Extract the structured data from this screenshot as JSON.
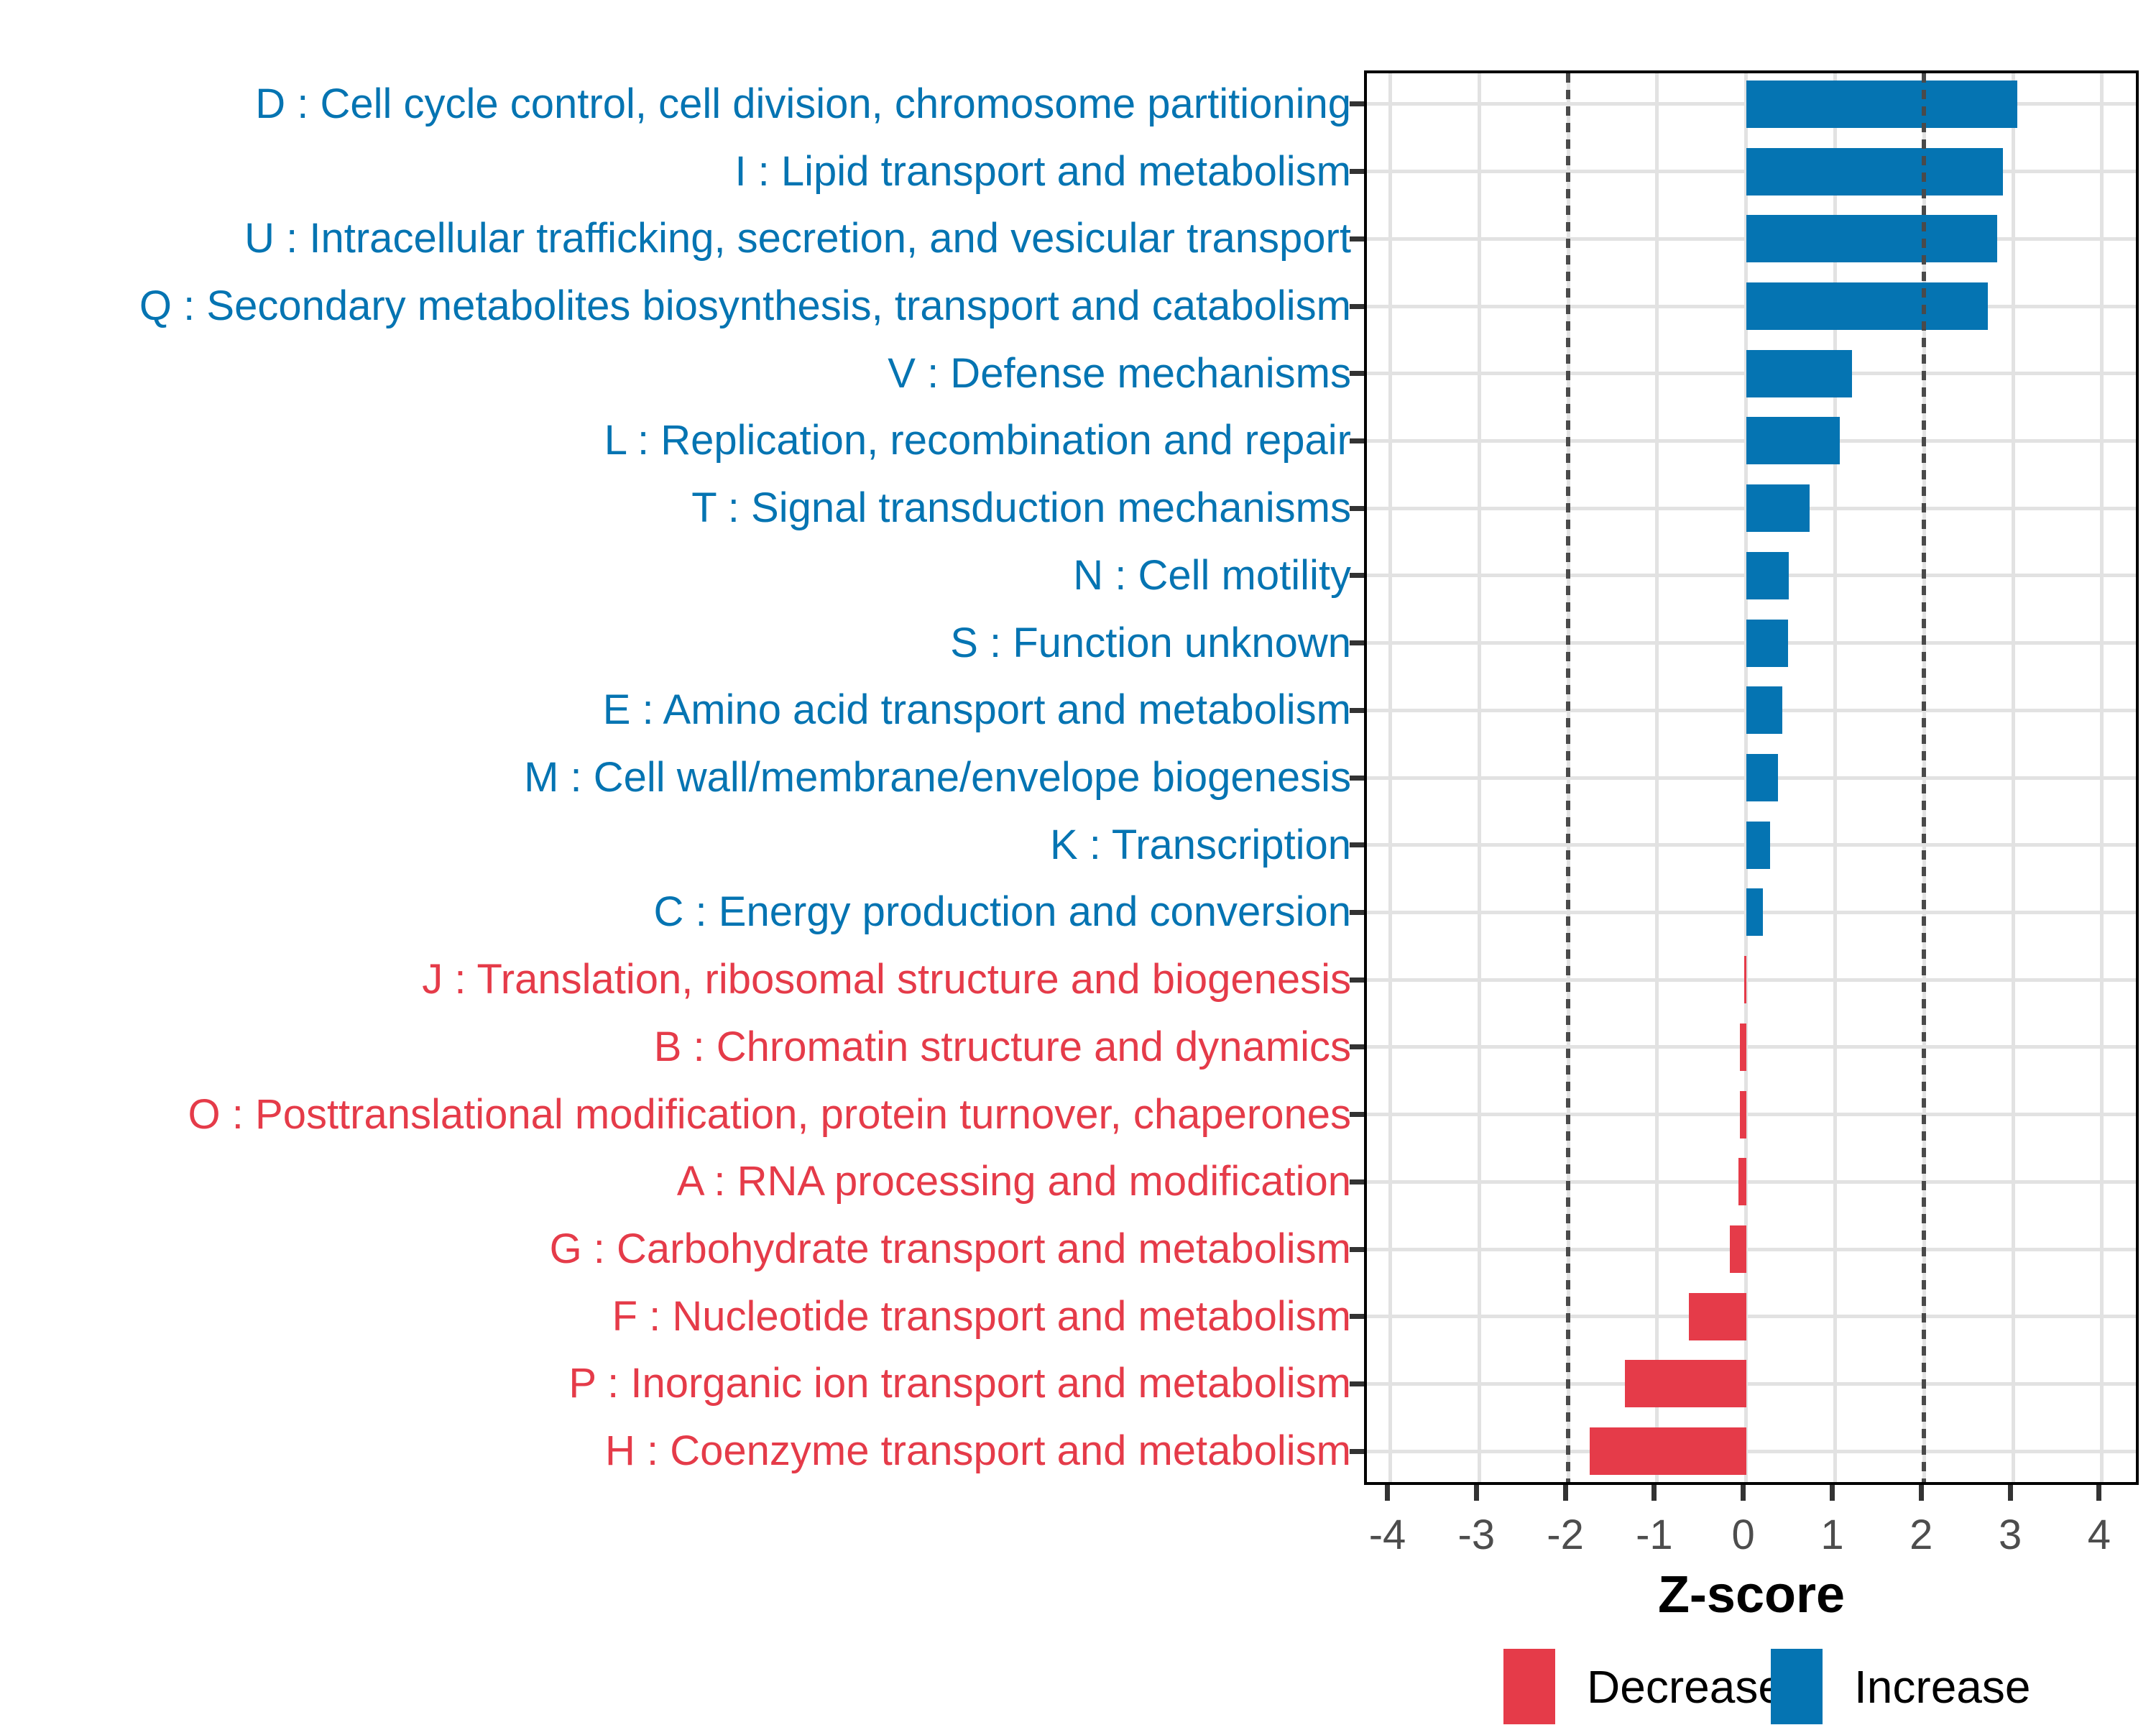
{
  "chart_data": {
    "type": "bar",
    "orientation": "horizontal",
    "xlabel": "Z-score",
    "x_ticks": [
      -4,
      -3,
      -2,
      -1,
      0,
      1,
      2,
      3,
      4
    ],
    "xlim": [
      -4.4,
      4.45
    ],
    "grid": "on",
    "reference_lines": [
      -2,
      2
    ],
    "categories": [
      {
        "code": "D",
        "label": "D : Cell cycle control, cell division, chromosome partitioning",
        "value": 3.05,
        "direction": "increase"
      },
      {
        "code": "I",
        "label": "I : Lipid transport and metabolism",
        "value": 2.89,
        "direction": "increase"
      },
      {
        "code": "U",
        "label": "U : Intracellular trafficking, secretion, and vesicular transport",
        "value": 2.82,
        "direction": "increase"
      },
      {
        "code": "Q",
        "label": "Q : Secondary metabolites biosynthesis, transport and catabolism",
        "value": 2.72,
        "direction": "increase"
      },
      {
        "code": "V",
        "label": "V : Defense mechanisms",
        "value": 1.19,
        "direction": "increase"
      },
      {
        "code": "L",
        "label": "L : Replication, recombination and repair",
        "value": 1.05,
        "direction": "increase"
      },
      {
        "code": "T",
        "label": "T : Signal transduction mechanisms",
        "value": 0.71,
        "direction": "increase"
      },
      {
        "code": "N",
        "label": "N : Cell motility",
        "value": 0.48,
        "direction": "increase"
      },
      {
        "code": "S",
        "label": "S : Function unknown",
        "value": 0.47,
        "direction": "increase"
      },
      {
        "code": "E",
        "label": "E : Amino acid transport and metabolism",
        "value": 0.41,
        "direction": "increase"
      },
      {
        "code": "M",
        "label": "M : Cell wall/membrane/envelope biogenesis",
        "value": 0.36,
        "direction": "increase"
      },
      {
        "code": "K",
        "label": "K : Transcription",
        "value": 0.27,
        "direction": "increase"
      },
      {
        "code": "C",
        "label": "C : Energy production and conversion",
        "value": 0.19,
        "direction": "increase"
      },
      {
        "code": "J",
        "label": "J : Translation, ribosomal structure and biogenesis",
        "value": -0.02,
        "direction": "decrease"
      },
      {
        "code": "B",
        "label": "B : Chromatin structure and dynamics",
        "value": -0.07,
        "direction": "decrease"
      },
      {
        "code": "O",
        "label": "O : Posttranslational modification, protein turnover, chaperones",
        "value": -0.07,
        "direction": "decrease"
      },
      {
        "code": "A",
        "label": "A : RNA processing and modification",
        "value": -0.09,
        "direction": "decrease"
      },
      {
        "code": "G",
        "label": "G : Carbohydrate transport and metabolism",
        "value": -0.18,
        "direction": "decrease"
      },
      {
        "code": "F",
        "label": "F : Nucleotide transport and metabolism",
        "value": -0.64,
        "direction": "decrease"
      },
      {
        "code": "P",
        "label": "P : Inorganic ion transport and metabolism",
        "value": -1.36,
        "direction": "decrease"
      },
      {
        "code": "H",
        "label": "H : Coenzyme transport and metabolism",
        "value": -1.76,
        "direction": "decrease"
      }
    ],
    "legend": {
      "items": [
        {
          "key": "decrease",
          "label": "Decrease"
        },
        {
          "key": "increase",
          "label": "Increase"
        }
      ]
    },
    "colors": {
      "increase": "#0574B2",
      "decrease": "#E53B49",
      "grid": "#E2E2E2",
      "reference_line": "#4a4a4a",
      "tick_label": "#4d4d4d",
      "axis": "#000000"
    }
  }
}
